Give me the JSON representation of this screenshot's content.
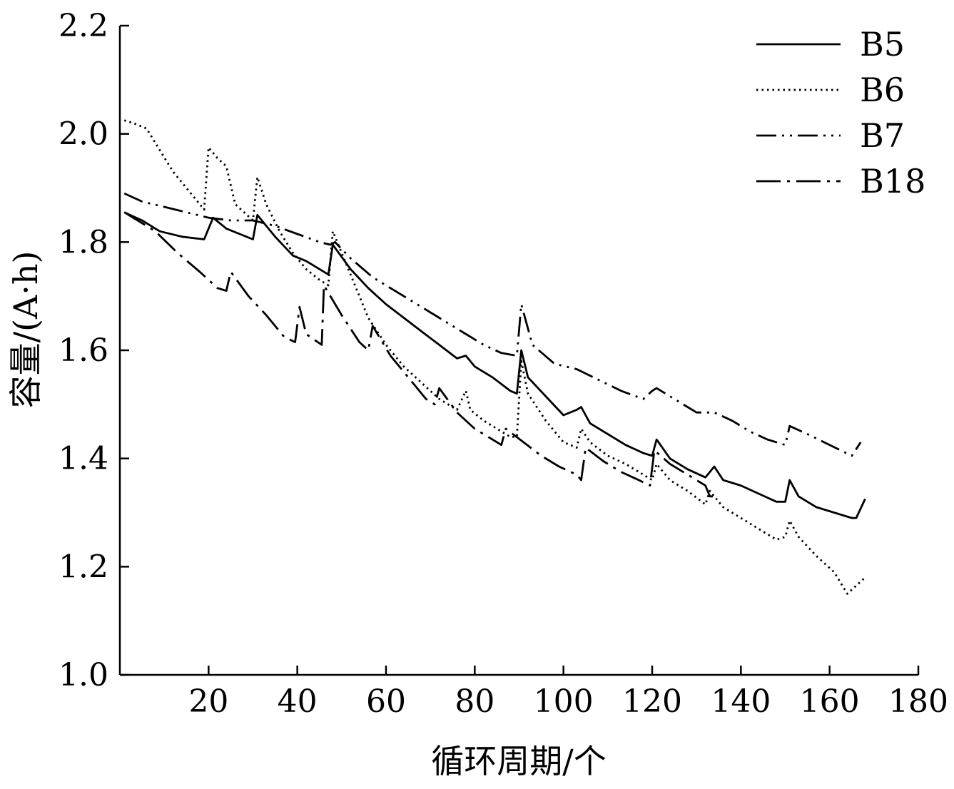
{
  "chart_data": {
    "type": "line",
    "title": "",
    "xlabel": "循环周期/个",
    "ylabel": "容量/(A·h)",
    "xlim": [
      0,
      180
    ],
    "ylim": [
      1.0,
      2.2
    ],
    "xticks": [
      20,
      40,
      60,
      80,
      100,
      120,
      140,
      160,
      180
    ],
    "yticks": [
      1.0,
      1.2,
      1.4,
      1.6,
      1.8,
      2.0,
      2.2
    ],
    "xtick_labels": [
      "20",
      "40",
      "60",
      "80",
      "100",
      "120",
      "140",
      "160",
      "180"
    ],
    "ytick_labels": [
      "1.0",
      "1.2",
      "1.4",
      "1.6",
      "1.8",
      "2.0",
      "2.2"
    ],
    "grid": false,
    "legend_position": "top-right",
    "series": [
      {
        "name": "B5",
        "style": "solid",
        "x": [
          1,
          5,
          9,
          14,
          19,
          21,
          24,
          27,
          30,
          31,
          35,
          39,
          42,
          45,
          47,
          48,
          52,
          56,
          60,
          64,
          68,
          72,
          76,
          78,
          80,
          84,
          88,
          89.5,
          90.5,
          92,
          96,
          100,
          103,
          104,
          106,
          110,
          114,
          118,
          120,
          121,
          124,
          128,
          132,
          134,
          136,
          140,
          144,
          148,
          150,
          151,
          153,
          157,
          161,
          165,
          166,
          168
        ],
        "y": [
          1.855,
          1.84,
          1.82,
          1.81,
          1.805,
          1.845,
          1.825,
          1.815,
          1.805,
          1.85,
          1.81,
          1.775,
          1.765,
          1.75,
          1.74,
          1.795,
          1.75,
          1.715,
          1.685,
          1.66,
          1.635,
          1.61,
          1.585,
          1.59,
          1.57,
          1.55,
          1.525,
          1.52,
          1.6,
          1.55,
          1.515,
          1.48,
          1.49,
          1.495,
          1.465,
          1.445,
          1.425,
          1.41,
          1.405,
          1.435,
          1.4,
          1.38,
          1.365,
          1.385,
          1.36,
          1.35,
          1.335,
          1.32,
          1.32,
          1.36,
          1.33,
          1.31,
          1.3,
          1.29,
          1.29,
          1.325
        ]
      },
      {
        "name": "B6",
        "style": "dotted",
        "x": [
          1,
          3,
          6,
          9,
          12,
          16,
          19,
          20,
          22,
          24,
          26,
          28,
          30,
          31,
          33,
          36,
          39,
          42,
          45,
          47,
          48,
          50,
          53,
          56,
          60,
          64,
          68,
          72,
          76,
          78,
          79,
          82,
          85,
          88,
          89.5,
          90.5,
          92,
          96,
          100,
          103,
          104,
          106,
          110,
          114,
          118,
          120,
          121,
          124,
          128,
          132,
          133,
          136,
          140,
          144,
          148,
          150,
          151,
          153,
          157,
          161,
          164,
          166,
          168
        ],
        "y": [
          2.025,
          2.02,
          2.01,
          1.97,
          1.93,
          1.89,
          1.86,
          1.975,
          1.955,
          1.94,
          1.87,
          1.855,
          1.84,
          1.92,
          1.87,
          1.82,
          1.78,
          1.75,
          1.73,
          1.72,
          1.82,
          1.78,
          1.72,
          1.66,
          1.61,
          1.57,
          1.54,
          1.51,
          1.49,
          1.525,
          1.49,
          1.47,
          1.455,
          1.44,
          1.44,
          1.58,
          1.52,
          1.47,
          1.43,
          1.42,
          1.455,
          1.43,
          1.405,
          1.39,
          1.37,
          1.36,
          1.39,
          1.36,
          1.34,
          1.315,
          1.34,
          1.31,
          1.29,
          1.27,
          1.25,
          1.255,
          1.285,
          1.255,
          1.22,
          1.19,
          1.15,
          1.165,
          1.18
        ]
      },
      {
        "name": "B7",
        "style": "dash-dot-dot",
        "x": [
          1,
          5,
          10,
          15,
          20,
          25,
          30,
          35,
          40,
          45,
          47.5,
          48.5,
          52,
          57,
          62,
          67,
          72,
          77,
          82,
          86,
          89.5,
          90.5,
          93,
          98,
          103,
          108,
          113,
          118,
          120,
          121,
          125,
          130,
          134,
          138,
          142,
          146,
          150,
          151,
          155,
          160,
          165,
          167
        ],
        "y": [
          1.89,
          1.875,
          1.865,
          1.855,
          1.845,
          1.84,
          1.84,
          1.83,
          1.815,
          1.8,
          1.795,
          1.8,
          1.77,
          1.735,
          1.71,
          1.685,
          1.66,
          1.635,
          1.61,
          1.595,
          1.59,
          1.685,
          1.61,
          1.575,
          1.565,
          1.545,
          1.525,
          1.51,
          1.525,
          1.53,
          1.51,
          1.485,
          1.485,
          1.47,
          1.45,
          1.435,
          1.425,
          1.46,
          1.445,
          1.425,
          1.405,
          1.43
        ]
      },
      {
        "name": "B18",
        "style": "dash-dot",
        "x": [
          1,
          4,
          8,
          13,
          18,
          22,
          24,
          25,
          29,
          33,
          37,
          39.5,
          40.5,
          42,
          45.5,
          46,
          50,
          54,
          56,
          57,
          61,
          65,
          69,
          71,
          72,
          76,
          80,
          84,
          86,
          87,
          91,
          95,
          99,
          103,
          104,
          105,
          109,
          113,
          117,
          119.5,
          120.5,
          124,
          128,
          132,
          133,
          134
        ],
        "y": [
          1.855,
          1.84,
          1.82,
          1.78,
          1.745,
          1.715,
          1.71,
          1.745,
          1.7,
          1.665,
          1.625,
          1.615,
          1.68,
          1.63,
          1.61,
          1.72,
          1.665,
          1.615,
          1.6,
          1.645,
          1.59,
          1.55,
          1.51,
          1.5,
          1.53,
          1.485,
          1.455,
          1.435,
          1.425,
          1.455,
          1.43,
          1.405,
          1.385,
          1.37,
          1.36,
          1.42,
          1.395,
          1.375,
          1.36,
          1.35,
          1.415,
          1.39,
          1.37,
          1.35,
          1.33,
          1.33
        ]
      }
    ]
  }
}
